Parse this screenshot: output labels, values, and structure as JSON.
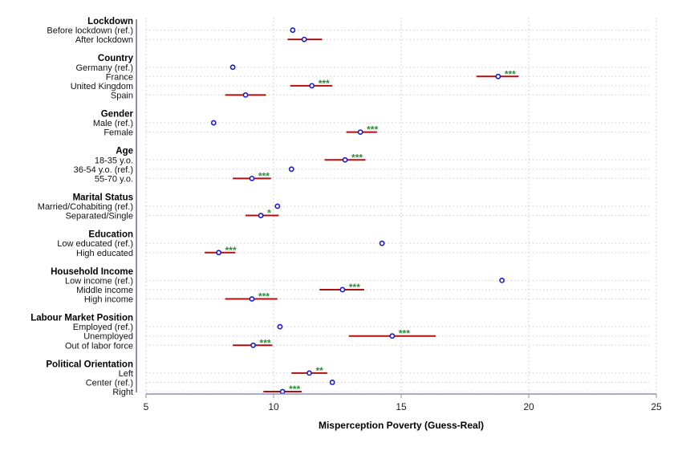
{
  "chart_data": {
    "type": "scatter",
    "xlabel": "Misperception Poverty (Guess-Real)",
    "xlim": [
      5,
      25
    ],
    "xticks": [
      5,
      10,
      15,
      20,
      25
    ],
    "grid": true,
    "colors": {
      "point": "#1a1acc",
      "ci": "#b01010",
      "stars": "#2e8b3a"
    },
    "groups": [
      {
        "name": "Lockdown",
        "items": [
          {
            "label": "Before lockdown (ref.)",
            "x": 10.75
          },
          {
            "label": "After lockdown",
            "x": 11.2,
            "ci": [
              10.55,
              11.9
            ]
          }
        ]
      },
      {
        "name": "Country",
        "items": [
          {
            "label": "Germany (ref.)",
            "x": 8.4
          },
          {
            "label": "France",
            "x": 18.8,
            "ci": [
              17.95,
              19.6
            ],
            "sig": "***"
          },
          {
            "label": "United Kingdom",
            "x": 11.5,
            "ci": [
              10.65,
              12.3
            ],
            "sig": "***"
          },
          {
            "label": "Spain",
            "x": 8.9,
            "ci": [
              8.1,
              9.7
            ]
          }
        ]
      },
      {
        "name": "Gender",
        "items": [
          {
            "label": "Male (ref.)",
            "x": 7.65
          },
          {
            "label": "Female",
            "x": 13.4,
            "ci": [
              12.85,
              14.05
            ],
            "sig": "***"
          }
        ]
      },
      {
        "name": "Age",
        "items": [
          {
            "label": "18-35 y.o.",
            "x": 12.8,
            "ci": [
              12.0,
              13.6
            ],
            "sig": "***"
          },
          {
            "label": "36-54 y.o. (ref.)",
            "x": 10.7
          },
          {
            "label": "55-70 y.o.",
            "x": 9.15,
            "ci": [
              8.4,
              9.9
            ],
            "sig": "***"
          }
        ]
      },
      {
        "name": "Marital Status",
        "items": [
          {
            "label": "Married/Cohabiting (ref.)",
            "x": 10.15
          },
          {
            "label": "Separated/Single",
            "x": 9.5,
            "ci": [
              8.9,
              10.2
            ],
            "sig": "*"
          }
        ]
      },
      {
        "name": "Education",
        "items": [
          {
            "label": "Low educated (ref.)",
            "x": 14.25
          },
          {
            "label": "High educated",
            "x": 7.85,
            "ci": [
              7.3,
              8.5
            ],
            "sig": "***"
          }
        ]
      },
      {
        "name": "Household Income",
        "items": [
          {
            "label": "Low income (ref.)",
            "x": 18.95
          },
          {
            "label": "Middle income",
            "x": 12.7,
            "ci": [
              11.8,
              13.55
            ],
            "sig": "***"
          },
          {
            "label": "High income",
            "x": 9.15,
            "ci": [
              8.1,
              10.15
            ],
            "sig": "***"
          }
        ]
      },
      {
        "name": "Labour Market Position",
        "items": [
          {
            "label": "Employed (ref.)",
            "x": 10.25
          },
          {
            "label": "Unemployed",
            "x": 14.65,
            "ci": [
              12.95,
              16.35
            ],
            "sig": "***"
          },
          {
            "label": "Out of labor force",
            "x": 9.2,
            "ci": [
              8.4,
              9.95
            ],
            "sig": "***"
          }
        ]
      },
      {
        "name": "Political Orientation",
        "items": [
          {
            "label": "Left",
            "x": 11.4,
            "ci": [
              10.7,
              12.1
            ],
            "sig": "**"
          },
          {
            "label": "Center (ref.)",
            "x": 12.3
          },
          {
            "label": "Right",
            "x": 10.35,
            "ci": [
              9.6,
              11.1
            ],
            "sig": "***"
          }
        ]
      }
    ]
  }
}
